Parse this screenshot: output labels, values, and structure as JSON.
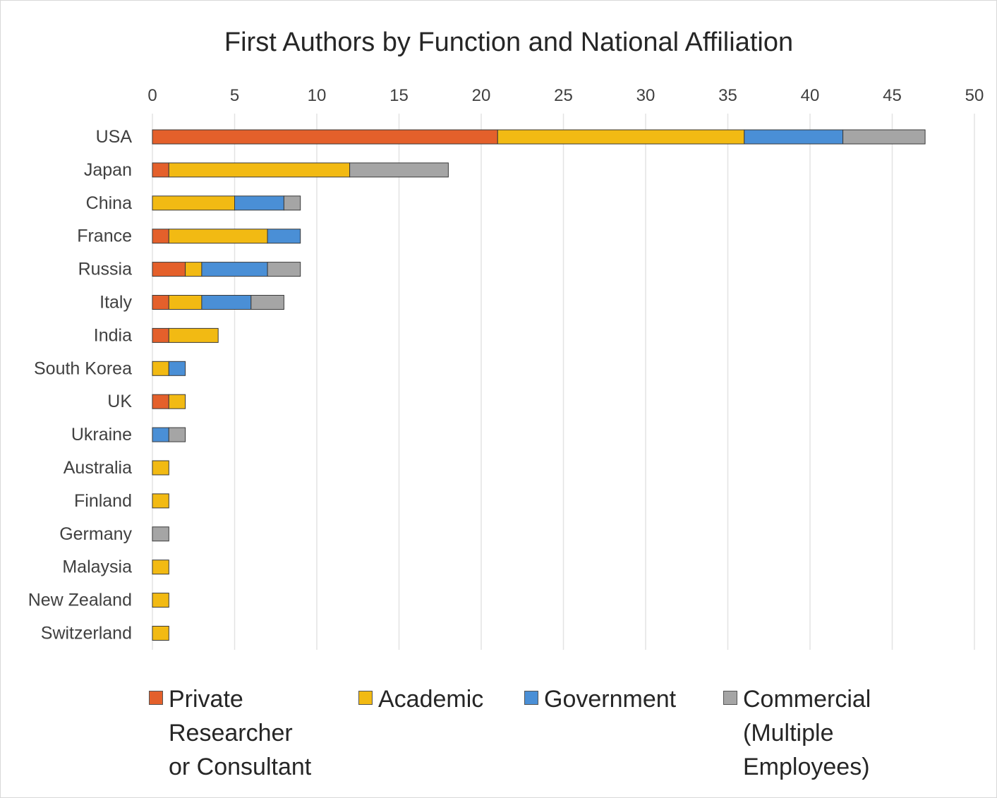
{
  "chart_data": {
    "type": "bar",
    "orientation": "horizontal",
    "stacked": true,
    "title": "First Authors by Function and National Affiliation",
    "categories": [
      "USA",
      "Japan",
      "China",
      "France",
      "Russia",
      "Italy",
      "India",
      "South Korea",
      "UK",
      "Ukraine",
      "Australia",
      "Finland",
      "Germany",
      "Malaysia",
      "New Zealand",
      "Switzerland"
    ],
    "series": [
      {
        "name": "Private Researcher or Consultant",
        "color": "#E4602B",
        "values": [
          21,
          1,
          0,
          1,
          2,
          1,
          1,
          0,
          1,
          0,
          0,
          0,
          0,
          0,
          0,
          0
        ]
      },
      {
        "name": "Academic",
        "color": "#F2BA13",
        "values": [
          15,
          11,
          5,
          6,
          1,
          2,
          3,
          1,
          1,
          0,
          1,
          1,
          0,
          1,
          1,
          1
        ]
      },
      {
        "name": "Government",
        "color": "#4A8FD6",
        "values": [
          6,
          0,
          3,
          2,
          4,
          3,
          0,
          1,
          0,
          1,
          0,
          0,
          0,
          0,
          0,
          0
        ]
      },
      {
        "name": "Commercial (Multiple Employees)",
        "color": "#A5A5A5",
        "values": [
          5,
          6,
          1,
          0,
          2,
          2,
          0,
          0,
          0,
          1,
          0,
          0,
          1,
          0,
          0,
          0
        ]
      }
    ],
    "xlim": [
      0,
      50
    ],
    "xticks": [
      "0",
      "5",
      "10",
      "15",
      "20",
      "25",
      "30",
      "35",
      "40",
      "45",
      "50"
    ],
    "axis_position": "top",
    "grid": true,
    "legend_position": "bottom"
  },
  "legend": {
    "items": [
      {
        "label": "Private\nResearcher\nor Consultant",
        "color": "#E4602B"
      },
      {
        "label": "Academic",
        "color": "#F2BA13"
      },
      {
        "label": "Government",
        "color": "#4A8FD6"
      },
      {
        "label": "Commercial\n(Multiple\nEmployees)",
        "color": "#A5A5A5"
      }
    ]
  }
}
